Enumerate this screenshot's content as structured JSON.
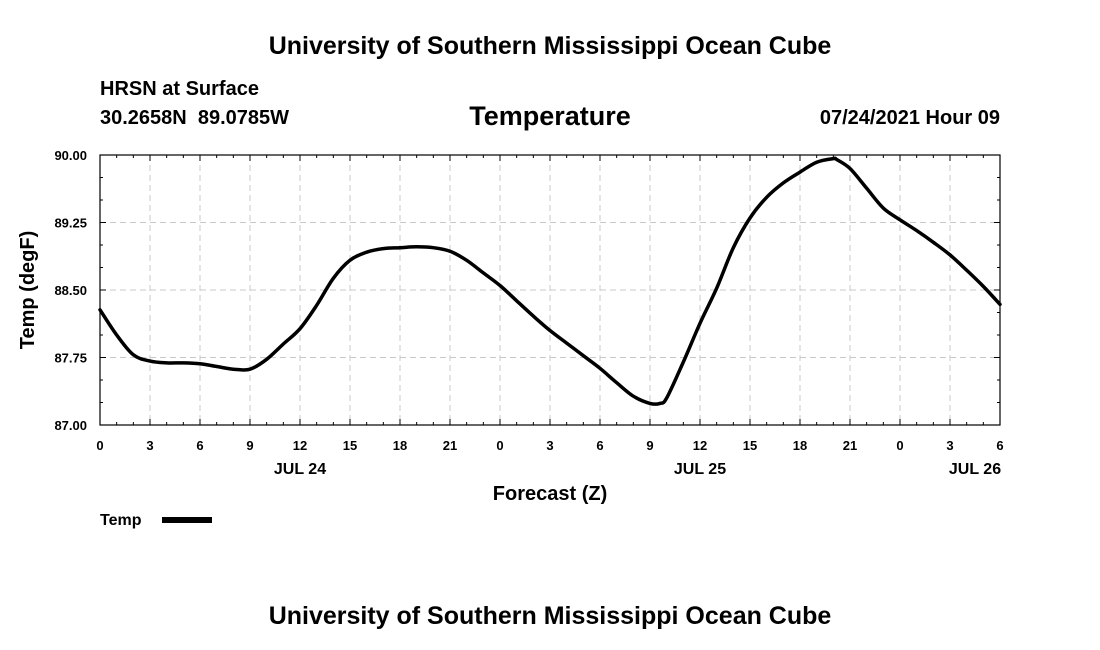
{
  "header": {
    "title_top": "University of Southern Mississippi Ocean Cube",
    "title_bottom": "University of Southern Mississippi Ocean Cube",
    "station": "HRSN at Surface",
    "coords": "30.2658N  89.0785W",
    "variable": "Temperature",
    "datetime": "07/24/2021 Hour 09"
  },
  "chart_data": {
    "type": "line",
    "title": "Temperature",
    "xlabel": "Forecast (Z)",
    "ylabel": "Temp (degF)",
    "xlim": [
      0,
      54
    ],
    "ylim": [
      87.0,
      90.0
    ],
    "grid": true,
    "y_ticks": [
      "87.00",
      "87.75",
      "88.50",
      "89.25",
      "90.00"
    ],
    "y_tick_values": [
      87.0,
      87.75,
      88.5,
      89.25,
      90.0
    ],
    "x_ticks": [
      "0",
      "3",
      "6",
      "9",
      "12",
      "15",
      "18",
      "21",
      "0",
      "3",
      "6",
      "9",
      "12",
      "15",
      "18",
      "21",
      "0",
      "3",
      "6"
    ],
    "date_labels": [
      {
        "label": "JUL 24",
        "hour": 12
      },
      {
        "label": "JUL 25",
        "hour": 36
      },
      {
        "label": "JUL 26",
        "hour": 52.5
      }
    ],
    "legend": [
      {
        "name": "Temp",
        "color": "#000000"
      }
    ],
    "legend_position": "bottom-left",
    "series": [
      {
        "name": "Temp",
        "color": "#000000",
        "x": [
          0,
          1,
          2,
          3,
          4,
          5,
          6,
          7,
          8,
          9,
          10,
          11,
          12,
          13,
          14,
          15,
          16,
          17,
          18,
          19,
          20,
          21,
          22,
          23,
          24,
          25,
          26,
          27,
          28,
          29,
          30,
          31,
          32,
          33,
          33.6,
          34,
          35,
          36,
          37,
          38,
          39,
          40,
          41,
          42,
          43,
          44,
          44.2,
          45,
          46,
          47,
          48,
          49,
          50,
          51,
          52,
          53,
          54
        ],
        "values": [
          88.28,
          88.0,
          87.78,
          87.71,
          87.69,
          87.69,
          87.68,
          87.65,
          87.62,
          87.62,
          87.73,
          87.9,
          88.07,
          88.33,
          88.63,
          88.83,
          88.92,
          88.96,
          88.97,
          88.98,
          88.97,
          88.93,
          88.83,
          88.69,
          88.55,
          88.38,
          88.21,
          88.05,
          87.91,
          87.77,
          87.63,
          87.47,
          87.32,
          87.24,
          87.24,
          87.3,
          87.7,
          88.13,
          88.52,
          88.97,
          89.3,
          89.53,
          89.69,
          89.81,
          89.92,
          89.96,
          89.95,
          89.85,
          89.63,
          89.41,
          89.28,
          89.16,
          89.03,
          88.89,
          88.72,
          88.54,
          88.34
        ]
      }
    ]
  }
}
